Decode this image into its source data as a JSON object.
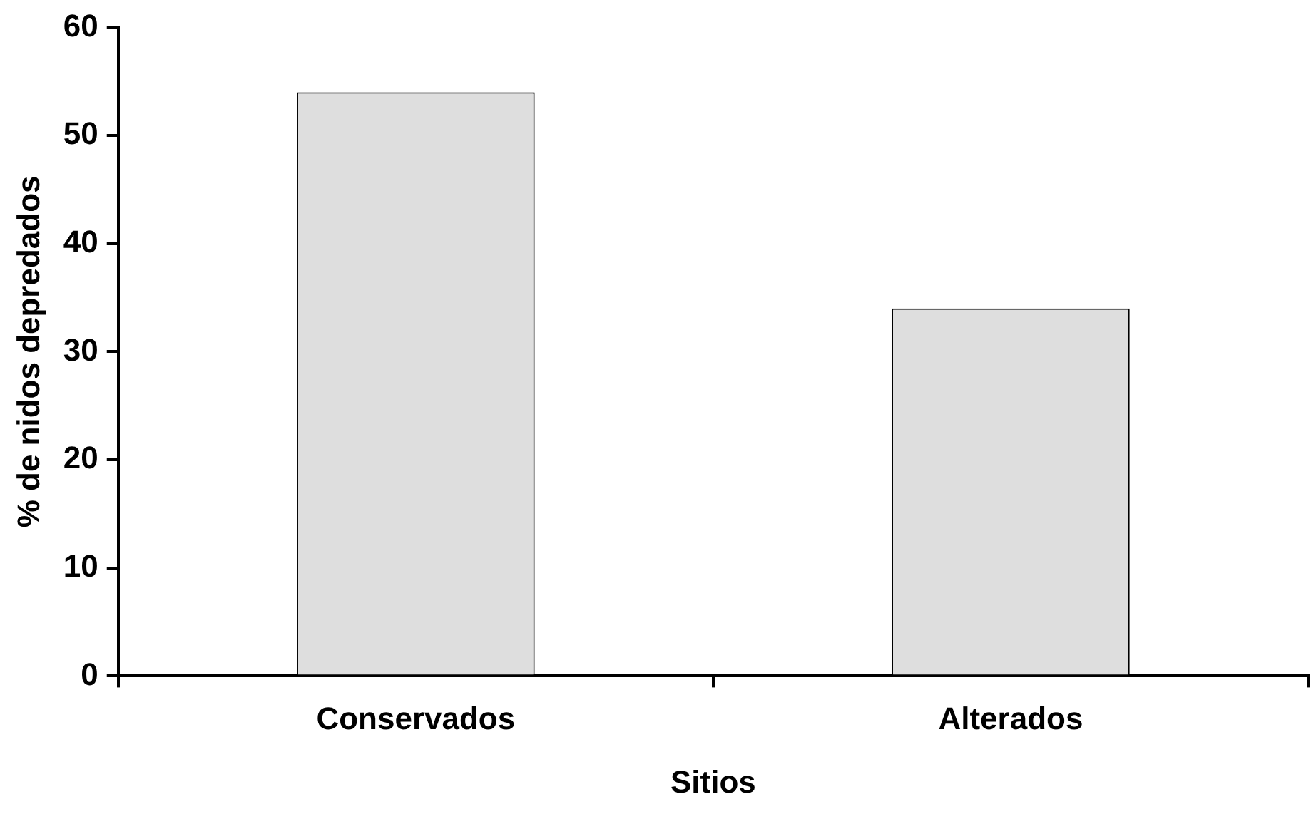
{
  "chart_data": {
    "type": "bar",
    "xlabel": "Sitios",
    "ylabel": "% de nidos depredados",
    "categories": [
      "Conservados",
      "Alterados"
    ],
    "values": [
      54,
      34
    ],
    "color": "#dedede",
    "ylim": [
      0,
      60
    ],
    "yticks": [
      0,
      10,
      20,
      30,
      40,
      50,
      60
    ],
    "grid": false,
    "legend": false
  }
}
